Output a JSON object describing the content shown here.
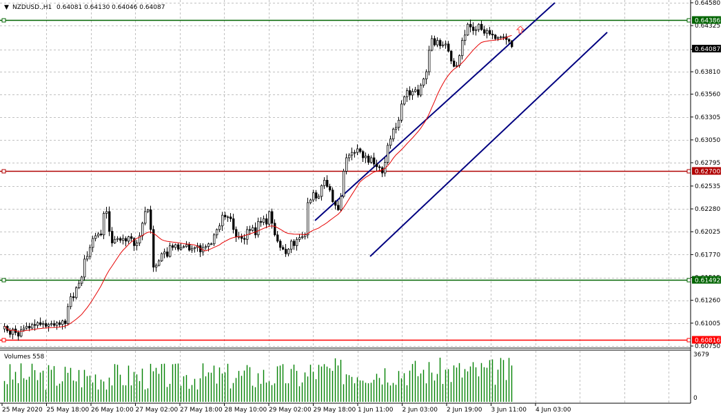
{
  "header": {
    "menu_icon": "triangle-down-icon",
    "symbol": "NZDUSD.,H1",
    "ohlc": "0.64081 0.64130 0.64046 0.64087"
  },
  "volumes_label": "Volumes 558",
  "volume_axis": {
    "max_label": "3679",
    "min_label": "0"
  },
  "colors": {
    "background": "#ffffff",
    "grid": "#c0c0c0",
    "candle": "#000000",
    "ma": "#e60000",
    "channel": "#000080",
    "level_green": "#006400",
    "level_red": "#b00000",
    "level_bright_red": "#ff0000",
    "price_tag_bg": "#000000",
    "volume_bar": "#008000",
    "signal_arrow": "#ff4040"
  },
  "price_axis": {
    "labels": [
      "0.64580",
      "0.64325",
      "0.64060",
      "0.63810",
      "0.63560",
      "0.63305",
      "0.63050",
      "0.62795",
      "0.62535",
      "0.62280",
      "0.62025",
      "0.61770",
      "0.61515",
      "0.61260",
      "0.61005",
      "0.60750"
    ],
    "current_price_tag": "0.64087",
    "range": [
      0.6075,
      0.6458
    ]
  },
  "levels": [
    {
      "name": "level-0.64386",
      "label": "0.64386",
      "price": 0.64386,
      "color_key": "level_green"
    },
    {
      "name": "level-0.62700",
      "label": "0.62700",
      "price": 0.627,
      "color_key": "level_red"
    },
    {
      "name": "level-0.61492",
      "label": "0.61492",
      "price": 0.61492,
      "color_key": "level_green"
    },
    {
      "name": "level-0.60816",
      "label": "0.60816",
      "price": 0.60816,
      "color_key": "level_bright_red"
    }
  ],
  "time_axis": {
    "labels": [
      "25 May 2020",
      "25 May 18:00",
      "26 May 10:00",
      "27 May 02:00",
      "27 May 18:00",
      "28 May 10:00",
      "29 May 02:00",
      "29 May 18:00",
      "1 Jun 11:00",
      "2 Jun 03:00",
      "2 Jun 19:00",
      "3 Jun 11:00",
      "4 Jun 03:00"
    ]
  },
  "chart_data": {
    "type": "candlestick",
    "symbol": "NZDUSD",
    "timeframe": "H1",
    "ylim": [
      0.6075,
      0.6458
    ],
    "closes": [
      0.6097,
      0.6092,
      0.6088,
      0.6094,
      0.609,
      0.6086,
      0.6093,
      0.6095,
      0.6097,
      0.6095,
      0.6099,
      0.6098,
      0.6101,
      0.6099,
      0.61,
      0.6097,
      0.6099,
      0.61,
      0.6098,
      0.6101,
      0.6099,
      0.6103,
      0.61,
      0.6119,
      0.613,
      0.6129,
      0.614,
      0.6145,
      0.6152,
      0.6172,
      0.6175,
      0.6185,
      0.6195,
      0.6198,
      0.62,
      0.6199,
      0.6223,
      0.6225,
      0.6203,
      0.619,
      0.6194,
      0.6195,
      0.6193,
      0.6195,
      0.6192,
      0.6197,
      0.6195,
      0.6187,
      0.619,
      0.6198,
      0.6212,
      0.6225,
      0.6227,
      0.6205,
      0.6163,
      0.6165,
      0.617,
      0.6178,
      0.618,
      0.6175,
      0.6187,
      0.6185,
      0.6188,
      0.6183,
      0.6185,
      0.6186,
      0.6188,
      0.6182,
      0.6184,
      0.6185,
      0.6187,
      0.618,
      0.6185,
      0.6186,
      0.6189,
      0.6189,
      0.6199,
      0.6205,
      0.6209,
      0.6221,
      0.6219,
      0.6219,
      0.6217,
      0.6205,
      0.6197,
      0.6197,
      0.6195,
      0.6194,
      0.6205,
      0.6204,
      0.6207,
      0.6199,
      0.6214,
      0.6213,
      0.6217,
      0.6211,
      0.6225,
      0.6212,
      0.6199,
      0.6192,
      0.6185,
      0.6183,
      0.6178,
      0.6183,
      0.6192,
      0.6187,
      0.6194,
      0.6196,
      0.6197,
      0.6199,
      0.6235,
      0.6238,
      0.6246,
      0.624,
      0.6242,
      0.6254,
      0.626,
      0.6253,
      0.6249,
      0.6236,
      0.6232,
      0.6227,
      0.6242,
      0.627,
      0.6285,
      0.6288,
      0.6291,
      0.6291,
      0.6295,
      0.6292,
      0.6285,
      0.6287,
      0.628,
      0.6285,
      0.6278,
      0.6275,
      0.6274,
      0.6268,
      0.628,
      0.6299,
      0.6306,
      0.6317,
      0.6319,
      0.6327,
      0.6345,
      0.6353,
      0.636,
      0.6355,
      0.6359,
      0.6361,
      0.6355,
      0.6366,
      0.6373,
      0.6381,
      0.6405,
      0.6418,
      0.6411,
      0.6416,
      0.641,
      0.6411,
      0.6412,
      0.6404,
      0.6393,
      0.6387,
      0.6388,
      0.6399,
      0.6416,
      0.6422,
      0.6434,
      0.6431,
      0.6427,
      0.6428,
      0.6434,
      0.6428,
      0.6424,
      0.6427,
      0.6423,
      0.6422,
      0.6418,
      0.6419,
      0.642,
      0.642,
      0.6417,
      0.6415,
      0.6409
    ],
    "ma_period": 20,
    "volume_max": 3679,
    "channel": {
      "upper": [
        {
          "bar": 113,
          "price": 0.6215
        },
        {
          "bar": 200,
          "price": 0.6458
        }
      ],
      "lower": [
        {
          "bar": 133,
          "price": 0.6175
        },
        {
          "bar": 219,
          "price": 0.6425
        }
      ]
    }
  }
}
